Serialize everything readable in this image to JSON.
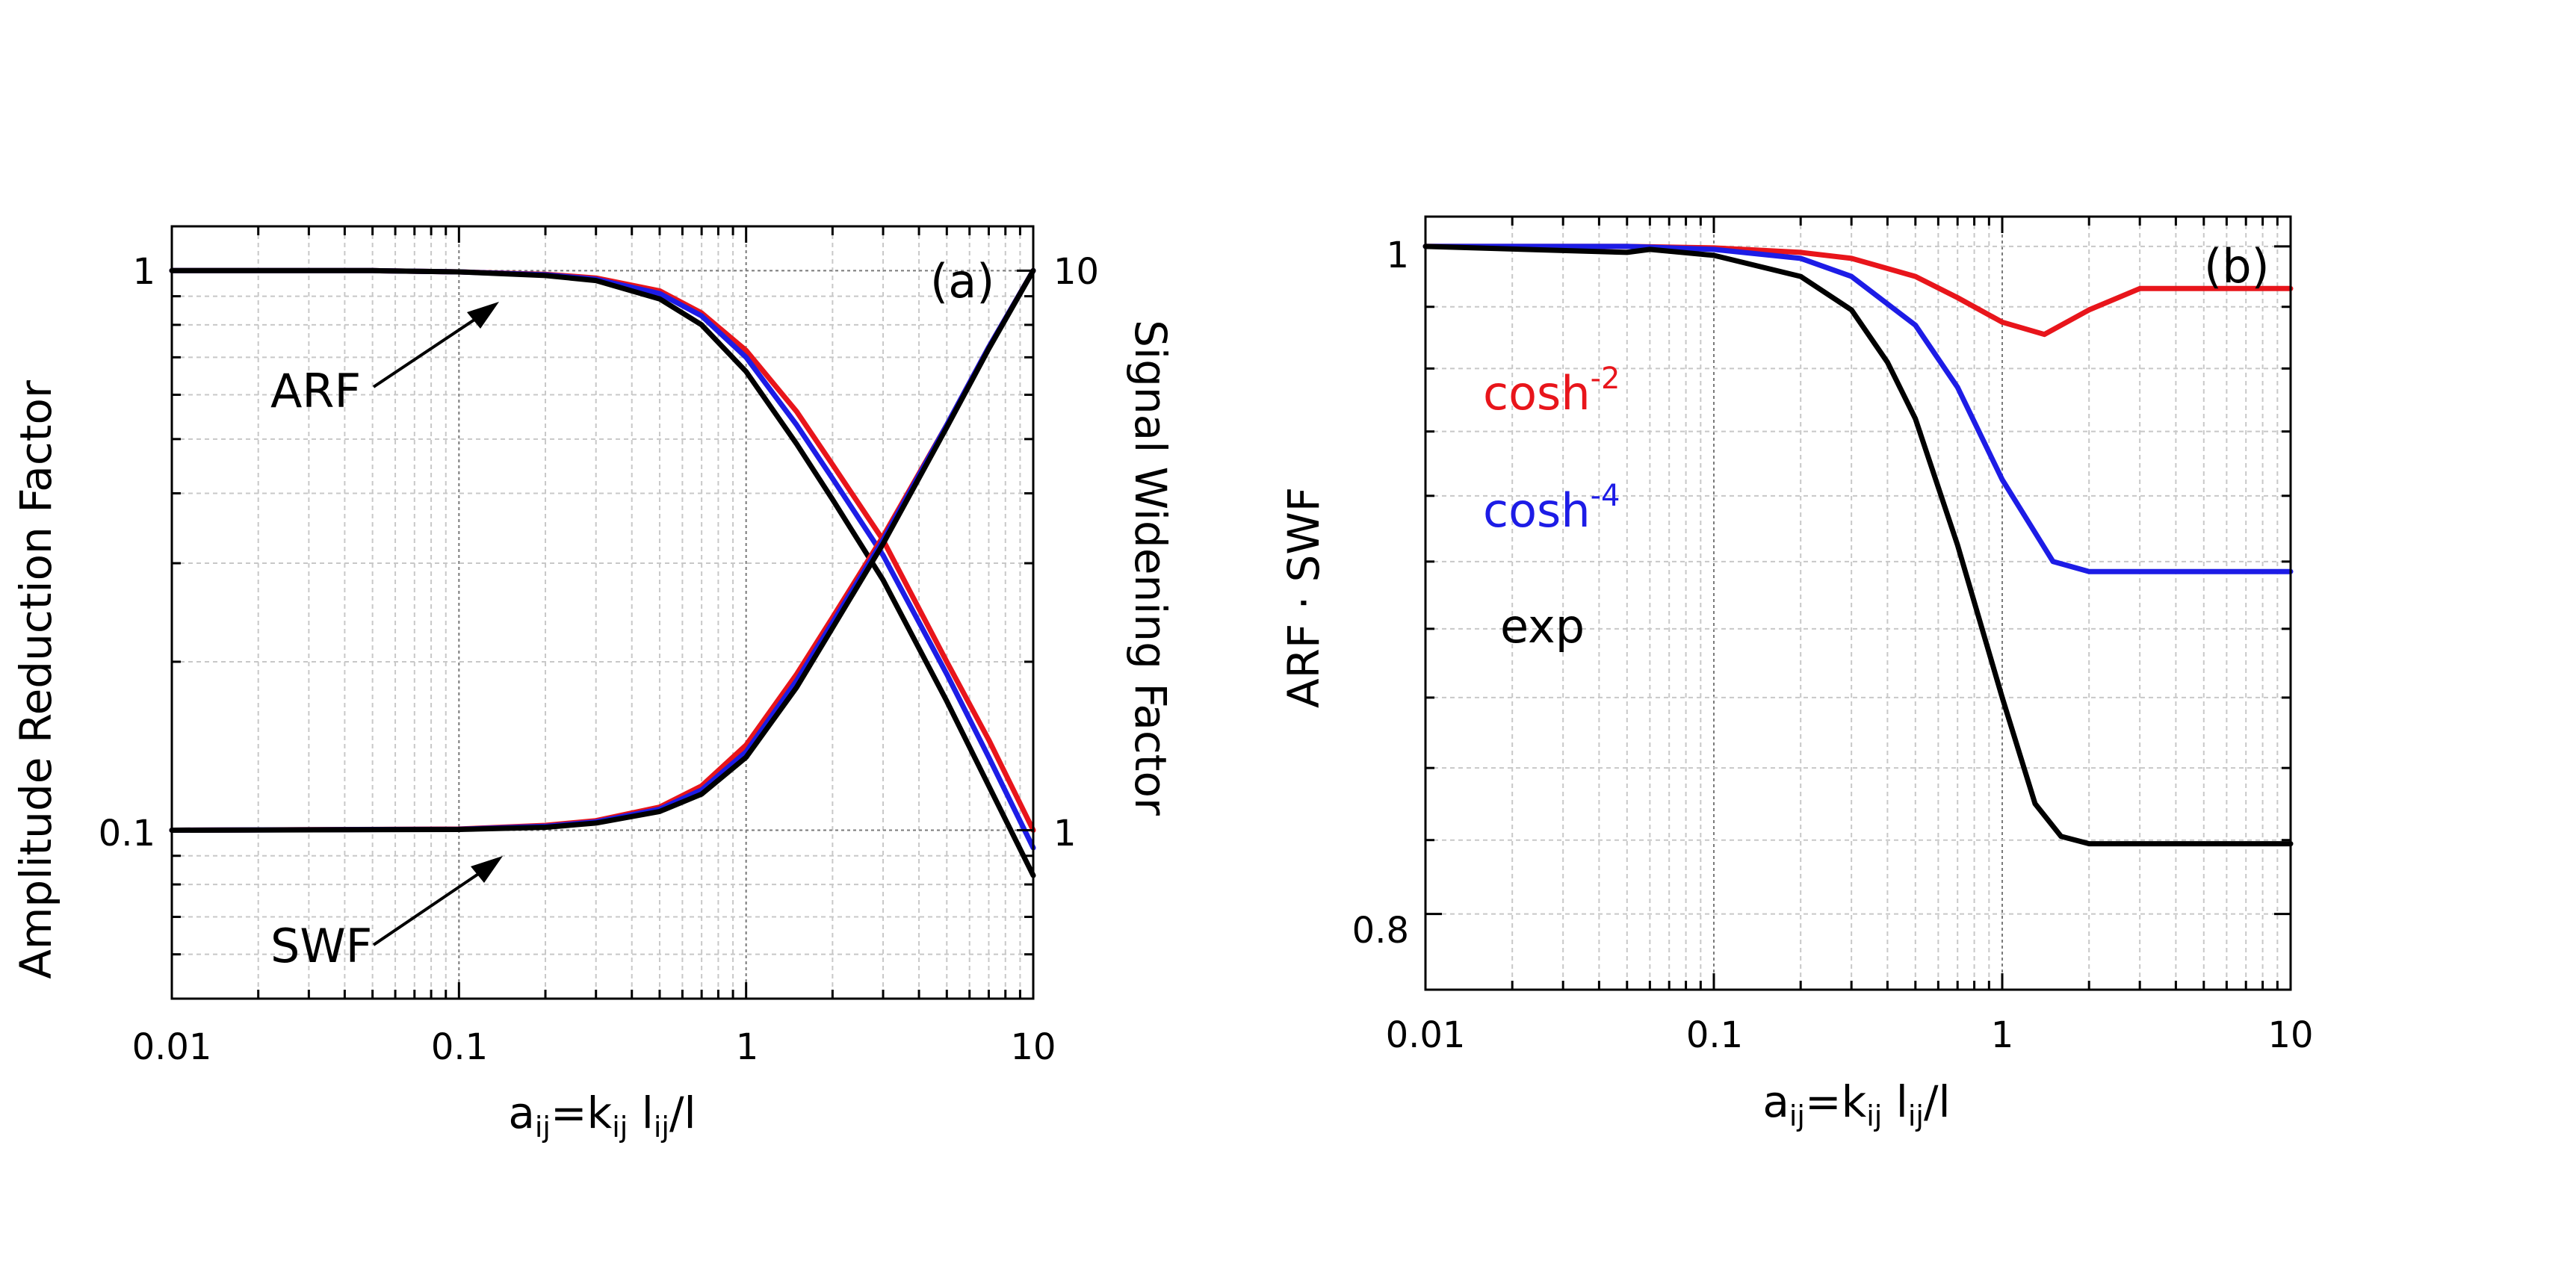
{
  "chart_data": [
    {
      "type": "line",
      "panel_label": "(a)",
      "x_scale": "log",
      "xlim": [
        0.01,
        10
      ],
      "x_ticks": [
        "0.01",
        "0.1",
        "1",
        "10"
      ],
      "xlabel": {
        "main": "a",
        "sub1": "ij",
        "mid": "=k",
        "sub2": "ij",
        "mid2": " l",
        "sub3": "ij",
        "tail": "/l"
      },
      "ylabel_left": "Amplitude Reduction Factor",
      "ylabel_right": "Signal Widening Factor",
      "y_left_scale": "log",
      "y_left_lim": [
        0.05,
        1.2
      ],
      "y_left_ticks": [
        "1",
        "0.1"
      ],
      "y_right_scale": "log",
      "y_right_lim": [
        0.5,
        12
      ],
      "y_right_ticks": [
        "10",
        "1"
      ],
      "annotations": [
        "ARF",
        "SWF"
      ],
      "grid": true,
      "series": [
        {
          "name": "cosh^-2",
          "quantity": "ARF",
          "color": "#e8151b",
          "x": [
            0.01,
            0.05,
            0.1,
            0.2,
            0.3,
            0.5,
            0.7,
            1,
            1.5,
            2,
            3,
            5,
            7,
            10
          ],
          "y": [
            1.0,
            1.0,
            0.995,
            0.985,
            0.97,
            0.92,
            0.84,
            0.72,
            0.56,
            0.45,
            0.33,
            0.2,
            0.145,
            0.1
          ]
        },
        {
          "name": "cosh^-4",
          "quantity": "ARF",
          "color": "#1d1ce6",
          "x": [
            0.01,
            0.05,
            0.1,
            0.2,
            0.3,
            0.5,
            0.7,
            1,
            1.5,
            2,
            3,
            5,
            7,
            10
          ],
          "y": [
            1.0,
            1.0,
            0.995,
            0.983,
            0.965,
            0.91,
            0.83,
            0.7,
            0.53,
            0.425,
            0.31,
            0.19,
            0.135,
            0.093
          ]
        },
        {
          "name": "exp",
          "quantity": "ARF",
          "color": "#000000",
          "x": [
            0.01,
            0.05,
            0.1,
            0.2,
            0.3,
            0.5,
            0.7,
            1,
            1.5,
            2,
            3,
            5,
            7,
            10
          ],
          "y": [
            1.0,
            1.0,
            0.995,
            0.98,
            0.96,
            0.89,
            0.8,
            0.66,
            0.49,
            0.39,
            0.28,
            0.17,
            0.12,
            0.083
          ]
        },
        {
          "name": "cosh^-2",
          "quantity": "SWF",
          "color": "#e8151b",
          "x": [
            0.01,
            0.1,
            0.2,
            0.3,
            0.5,
            0.7,
            1,
            1.5,
            2,
            3,
            5,
            7,
            10
          ],
          "y": [
            1.0,
            1.005,
            1.02,
            1.04,
            1.1,
            1.2,
            1.42,
            1.9,
            2.4,
            3.35,
            5.3,
            7.3,
            10.0
          ]
        },
        {
          "name": "cosh^-4",
          "quantity": "SWF",
          "color": "#1d1ce6",
          "x": [
            0.01,
            0.1,
            0.2,
            0.3,
            0.5,
            0.7,
            1,
            1.5,
            2,
            3,
            5,
            7,
            10
          ],
          "y": [
            1.0,
            1.004,
            1.016,
            1.035,
            1.09,
            1.18,
            1.38,
            1.85,
            2.35,
            3.3,
            5.3,
            7.3,
            10.0
          ]
        },
        {
          "name": "exp",
          "quantity": "SWF",
          "color": "#000000",
          "x": [
            0.01,
            0.1,
            0.2,
            0.3,
            0.5,
            0.7,
            1,
            1.5,
            2,
            3,
            5,
            7,
            10
          ],
          "y": [
            1.0,
            1.003,
            1.012,
            1.03,
            1.08,
            1.16,
            1.35,
            1.8,
            2.3,
            3.25,
            5.25,
            7.25,
            10.0
          ]
        }
      ]
    },
    {
      "type": "line",
      "panel_label": "(b)",
      "x_scale": "log",
      "xlim": [
        0.01,
        10
      ],
      "x_ticks": [
        "0.01",
        "0.1",
        "1",
        "10"
      ],
      "xlabel": {
        "main": "a",
        "sub1": "ij",
        "mid": "=k",
        "sub2": "ij",
        "mid2": " l",
        "sub3": "ij",
        "tail": "/l"
      },
      "ylabel": "ARF · SWF",
      "y_scale": "log",
      "ylim": [
        0.78,
        1.01
      ],
      "y_ticks": [
        "1",
        "0.8"
      ],
      "grid": true,
      "legend": [
        {
          "base": "cosh",
          "sup": "-2",
          "color": "#e8151b"
        },
        {
          "base": "cosh",
          "sup": "-4",
          "color": "#1d1ce6"
        },
        {
          "base": "exp",
          "sup": "",
          "color": "#000000"
        }
      ],
      "series": [
        {
          "name": "cosh^-2",
          "color": "#e8151b",
          "x": [
            0.01,
            0.05,
            0.1,
            0.2,
            0.3,
            0.5,
            0.7,
            1,
            1.4,
            2,
            3,
            5,
            10
          ],
          "y": [
            1.0,
            1.0,
            0.9995,
            0.998,
            0.996,
            0.99,
            0.983,
            0.975,
            0.971,
            0.979,
            0.986,
            0.986,
            0.986
          ]
        },
        {
          "name": "cosh^-4",
          "color": "#1d1ce6",
          "x": [
            0.01,
            0.05,
            0.1,
            0.2,
            0.3,
            0.5,
            0.7,
            1,
            1.5,
            2,
            3,
            10
          ],
          "y": [
            1.0,
            1.0,
            0.999,
            0.996,
            0.99,
            0.974,
            0.954,
            0.925,
            0.9,
            0.897,
            0.897,
            0.897
          ]
        },
        {
          "name": "exp",
          "color": "#000000",
          "x": [
            0.01,
            0.05,
            0.06,
            0.1,
            0.2,
            0.3,
            0.4,
            0.5,
            0.7,
            1,
            1.3,
            1.6,
            2,
            3,
            10
          ],
          "y": [
            1.0,
            0.998,
            0.999,
            0.997,
            0.99,
            0.979,
            0.962,
            0.944,
            0.905,
            0.86,
            0.83,
            0.821,
            0.819,
            0.819,
            0.819
          ]
        }
      ]
    }
  ]
}
